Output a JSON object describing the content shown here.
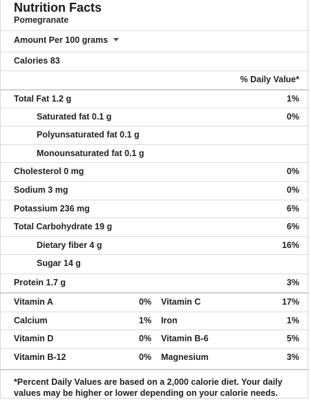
{
  "header": {
    "title": "Nutrition Facts",
    "food": "Pomegranate"
  },
  "serving": {
    "label": "Amount Per 100 grams"
  },
  "calories": "Calories 83",
  "daily_value_header": "% Daily Value*",
  "nutrients": [
    {
      "label": "Total Fat 1.2 g",
      "pct": "1%"
    },
    {
      "label": "Saturated fat 0.1 g",
      "pct": "0%"
    },
    {
      "label": "Polyunsaturated fat 0.1 g",
      "pct": ""
    },
    {
      "label": "Monounsaturated fat 0.1 g",
      "pct": ""
    },
    {
      "label": "Cholesterol 0 mg",
      "pct": "0%"
    },
    {
      "label": "Sodium 3 mg",
      "pct": "0%"
    },
    {
      "label": "Potassium 236 mg",
      "pct": "6%"
    },
    {
      "label": "Total Carbohydrate 19 g",
      "pct": "6%"
    },
    {
      "label": "Dietary fiber 4 g",
      "pct": "16%"
    },
    {
      "label": "Sugar 14 g",
      "pct": ""
    },
    {
      "label": "Protein 1.7 g",
      "pct": "3%"
    }
  ],
  "vitamins": [
    {
      "name1": "Vitamin A",
      "pct1": "0%",
      "name2": "Vitamin C",
      "pct2": "17%"
    },
    {
      "name1": "Calcium",
      "pct1": "1%",
      "name2": "Iron",
      "pct2": "1%"
    },
    {
      "name1": "Vitamin D",
      "pct1": "0%",
      "name2": "Vitamin B-6",
      "pct2": "5%"
    },
    {
      "name1": "Vitamin B-12",
      "pct1": "0%",
      "name2": "Magnesium",
      "pct2": "3%"
    }
  ],
  "footnote": "*Percent Daily Values are based on a 2,000 calorie diet. Your daily values may be higher or lower depending on your calorie needs."
}
